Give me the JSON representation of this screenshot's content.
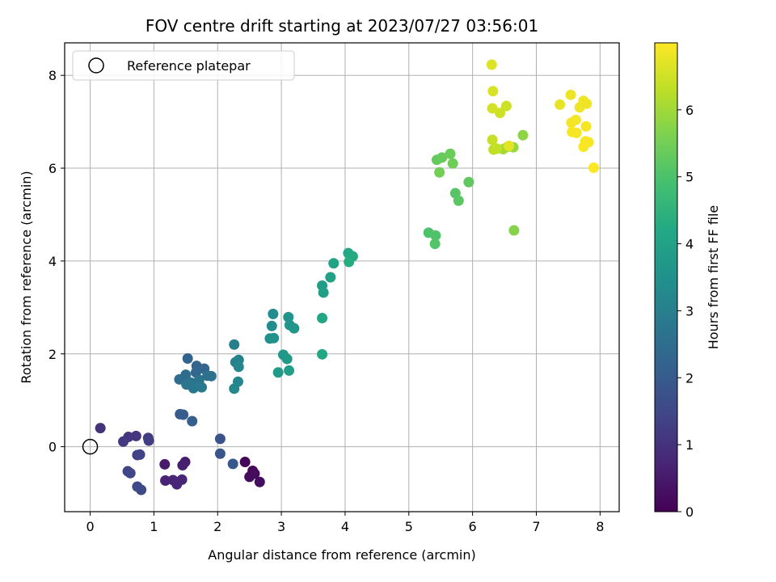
{
  "chart_data": {
    "type": "scatter",
    "title": "FOV centre drift starting at 2023/07/27 03:56:01",
    "xlabel": "Angular distance from reference (arcmin)",
    "ylabel": "Rotation from reference (arcmin)",
    "xlim": [
      -0.4,
      8.3
    ],
    "ylim": [
      -1.4,
      8.7
    ],
    "x_ticks": [
      0,
      1,
      2,
      3,
      4,
      5,
      6,
      7,
      8
    ],
    "y_ticks": [
      0,
      2,
      4,
      6,
      8
    ],
    "grid": true,
    "legend": {
      "position": "top-left",
      "entries": [
        {
          "label": "Reference platepar",
          "marker": "open-circle"
        }
      ]
    },
    "reference": {
      "x": 0,
      "y": 0,
      "label": "Reference platepar"
    },
    "colorbar": {
      "label": "Hours from first FF file",
      "range": [
        0,
        7
      ],
      "ticks": [
        0,
        1,
        2,
        3,
        4,
        5,
        6
      ],
      "colormap": "viridis"
    },
    "points": [
      {
        "x": 2.43,
        "y": -0.33,
        "t": 0.1
      },
      {
        "x": 2.55,
        "y": -0.52,
        "t": 0.15
      },
      {
        "x": 2.5,
        "y": -0.65,
        "t": 0.2
      },
      {
        "x": 2.58,
        "y": -0.58,
        "t": 0.22
      },
      {
        "x": 2.66,
        "y": -0.76,
        "t": 0.25
      },
      {
        "x": 1.17,
        "y": -0.38,
        "t": 0.5
      },
      {
        "x": 1.49,
        "y": -0.33,
        "t": 0.55
      },
      {
        "x": 1.45,
        "y": -0.4,
        "t": 0.6
      },
      {
        "x": 1.18,
        "y": -0.73,
        "t": 0.65
      },
      {
        "x": 1.3,
        "y": -0.72,
        "t": 0.7
      },
      {
        "x": 1.36,
        "y": -0.81,
        "t": 0.72
      },
      {
        "x": 1.44,
        "y": -0.71,
        "t": 0.75
      },
      {
        "x": 0.16,
        "y": 0.4,
        "t": 1.0
      },
      {
        "x": 0.72,
        "y": 0.23,
        "t": 1.05
      },
      {
        "x": 0.6,
        "y": 0.21,
        "t": 1.1
      },
      {
        "x": 0.52,
        "y": 0.11,
        "t": 1.15
      },
      {
        "x": 0.91,
        "y": 0.19,
        "t": 1.2
      },
      {
        "x": 0.92,
        "y": 0.13,
        "t": 1.25
      },
      {
        "x": 0.74,
        "y": -0.18,
        "t": 1.3
      },
      {
        "x": 0.78,
        "y": -0.17,
        "t": 1.35
      },
      {
        "x": 0.59,
        "y": -0.53,
        "t": 1.4
      },
      {
        "x": 0.63,
        "y": -0.57,
        "t": 1.45
      },
      {
        "x": 0.74,
        "y": -0.86,
        "t": 1.5
      },
      {
        "x": 0.8,
        "y": -0.93,
        "t": 1.55
      },
      {
        "x": 2.04,
        "y": 0.17,
        "t": 1.8
      },
      {
        "x": 2.04,
        "y": -0.15,
        "t": 1.85
      },
      {
        "x": 2.24,
        "y": -0.37,
        "t": 1.9
      },
      {
        "x": 1.41,
        "y": 0.7,
        "t": 2.0
      },
      {
        "x": 1.46,
        "y": 0.69,
        "t": 2.05
      },
      {
        "x": 1.6,
        "y": 0.55,
        "t": 2.1
      },
      {
        "x": 1.53,
        "y": 1.9,
        "t": 2.2
      },
      {
        "x": 1.67,
        "y": 1.74,
        "t": 2.25
      },
      {
        "x": 1.79,
        "y": 1.68,
        "t": 2.3
      },
      {
        "x": 1.66,
        "y": 1.6,
        "t": 2.35
      },
      {
        "x": 1.5,
        "y": 1.55,
        "t": 2.4
      },
      {
        "x": 1.4,
        "y": 1.45,
        "t": 2.45
      },
      {
        "x": 1.47,
        "y": 1.46,
        "t": 2.5
      },
      {
        "x": 1.84,
        "y": 1.53,
        "t": 2.55
      },
      {
        "x": 1.9,
        "y": 1.52,
        "t": 2.6
      },
      {
        "x": 1.71,
        "y": 1.44,
        "t": 2.65
      },
      {
        "x": 1.58,
        "y": 1.38,
        "t": 2.7
      },
      {
        "x": 1.51,
        "y": 1.34,
        "t": 2.75
      },
      {
        "x": 1.62,
        "y": 1.26,
        "t": 2.8
      },
      {
        "x": 1.75,
        "y": 1.28,
        "t": 2.85
      },
      {
        "x": 2.26,
        "y": 2.2,
        "t": 3.0
      },
      {
        "x": 2.28,
        "y": 1.82,
        "t": 3.05
      },
      {
        "x": 2.33,
        "y": 1.87,
        "t": 3.1
      },
      {
        "x": 2.33,
        "y": 1.72,
        "t": 3.15
      },
      {
        "x": 2.32,
        "y": 1.4,
        "t": 3.2
      },
      {
        "x": 2.26,
        "y": 1.25,
        "t": 3.25
      },
      {
        "x": 2.87,
        "y": 2.86,
        "t": 3.35
      },
      {
        "x": 2.85,
        "y": 2.6,
        "t": 3.4
      },
      {
        "x": 2.82,
        "y": 2.33,
        "t": 3.45
      },
      {
        "x": 2.88,
        "y": 2.34,
        "t": 3.5
      },
      {
        "x": 3.11,
        "y": 2.79,
        "t": 3.55
      },
      {
        "x": 3.13,
        "y": 2.62,
        "t": 3.6
      },
      {
        "x": 3.2,
        "y": 2.55,
        "t": 3.65
      },
      {
        "x": 3.03,
        "y": 1.98,
        "t": 3.7
      },
      {
        "x": 3.09,
        "y": 1.89,
        "t": 3.75
      },
      {
        "x": 2.95,
        "y": 1.6,
        "t": 3.8
      },
      {
        "x": 3.12,
        "y": 1.64,
        "t": 3.85
      },
      {
        "x": 3.64,
        "y": 3.47,
        "t": 3.9
      },
      {
        "x": 3.66,
        "y": 3.32,
        "t": 3.95
      },
      {
        "x": 3.77,
        "y": 3.65,
        "t": 4.0
      },
      {
        "x": 3.82,
        "y": 3.95,
        "t": 4.05
      },
      {
        "x": 3.64,
        "y": 2.77,
        "t": 4.1
      },
      {
        "x": 3.64,
        "y": 1.99,
        "t": 4.15
      },
      {
        "x": 4.05,
        "y": 4.17,
        "t": 4.2
      },
      {
        "x": 4.12,
        "y": 4.1,
        "t": 4.25
      },
      {
        "x": 4.06,
        "y": 3.98,
        "t": 4.3
      },
      {
        "x": 5.31,
        "y": 4.61,
        "t": 5.0
      },
      {
        "x": 5.42,
        "y": 4.55,
        "t": 5.05
      },
      {
        "x": 5.41,
        "y": 4.37,
        "t": 5.1
      },
      {
        "x": 5.73,
        "y": 5.46,
        "t": 5.15
      },
      {
        "x": 5.78,
        "y": 5.3,
        "t": 5.2
      },
      {
        "x": 5.94,
        "y": 5.7,
        "t": 5.25
      },
      {
        "x": 5.44,
        "y": 6.18,
        "t": 5.3
      },
      {
        "x": 5.52,
        "y": 6.23,
        "t": 5.35
      },
      {
        "x": 5.65,
        "y": 6.31,
        "t": 5.4
      },
      {
        "x": 5.69,
        "y": 6.1,
        "t": 5.45
      },
      {
        "x": 5.48,
        "y": 5.91,
        "t": 5.5
      },
      {
        "x": 6.65,
        "y": 4.66,
        "t": 5.7
      },
      {
        "x": 6.79,
        "y": 6.71,
        "t": 5.8
      },
      {
        "x": 6.64,
        "y": 6.45,
        "t": 5.9
      },
      {
        "x": 6.55,
        "y": 6.46,
        "t": 6.0
      },
      {
        "x": 6.48,
        "y": 6.41,
        "t": 6.05
      },
      {
        "x": 6.33,
        "y": 6.4,
        "t": 6.3
      },
      {
        "x": 6.38,
        "y": 6.42,
        "t": 6.35
      },
      {
        "x": 6.31,
        "y": 6.61,
        "t": 6.4
      },
      {
        "x": 6.53,
        "y": 7.34,
        "t": 6.45
      },
      {
        "x": 6.43,
        "y": 7.19,
        "t": 6.5
      },
      {
        "x": 6.31,
        "y": 7.29,
        "t": 6.55
      },
      {
        "x": 6.32,
        "y": 7.66,
        "t": 6.6
      },
      {
        "x": 6.3,
        "y": 8.23,
        "t": 6.65
      },
      {
        "x": 6.57,
        "y": 6.48,
        "t": 6.7
      },
      {
        "x": 7.37,
        "y": 7.37,
        "t": 6.75
      },
      {
        "x": 7.54,
        "y": 7.58,
        "t": 6.8
      },
      {
        "x": 7.68,
        "y": 7.31,
        "t": 6.82
      },
      {
        "x": 7.74,
        "y": 7.45,
        "t": 6.84
      },
      {
        "x": 7.79,
        "y": 7.39,
        "t": 6.86
      },
      {
        "x": 7.62,
        "y": 7.04,
        "t": 6.88
      },
      {
        "x": 7.55,
        "y": 6.98,
        "t": 6.9
      },
      {
        "x": 7.78,
        "y": 6.9,
        "t": 6.91
      },
      {
        "x": 7.56,
        "y": 6.78,
        "t": 6.92
      },
      {
        "x": 7.63,
        "y": 6.76,
        "t": 6.93
      },
      {
        "x": 7.77,
        "y": 6.58,
        "t": 6.94
      },
      {
        "x": 7.82,
        "y": 6.56,
        "t": 6.95
      },
      {
        "x": 7.74,
        "y": 6.46,
        "t": 6.96
      },
      {
        "x": 7.9,
        "y": 6.01,
        "t": 6.97
      }
    ]
  }
}
